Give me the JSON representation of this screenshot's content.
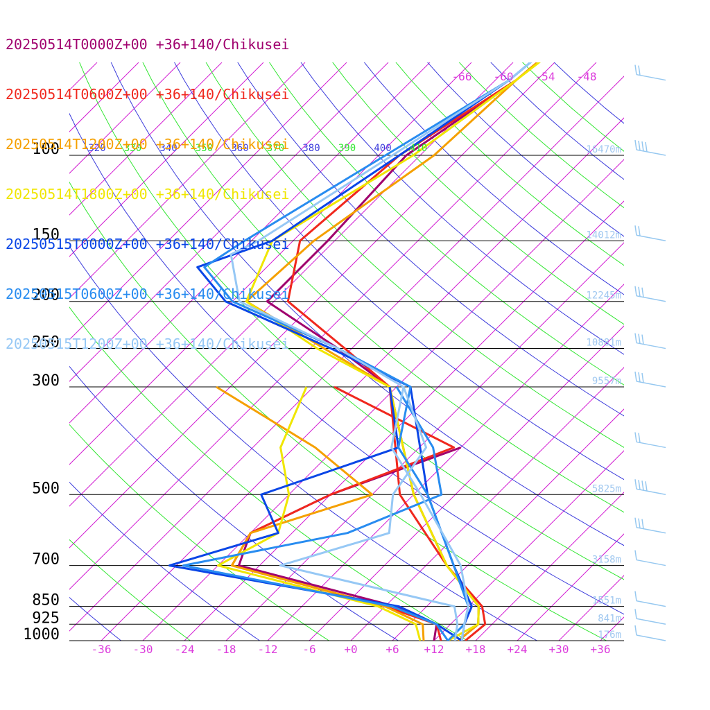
{
  "chart_data": {
    "type": "line",
    "title": "",
    "legend": {
      "placement": "top-left",
      "entries": [
        {
          "label": "20250514T0000Z+00 +36+140/Chikusei",
          "color": "#a0006e"
        },
        {
          "label": "20250514T0600Z+00 +36+140/Chikusei",
          "color": "#f0281e"
        },
        {
          "label": "20250514T1200Z+00 +36+140/Chikusei",
          "color": "#f5a000"
        },
        {
          "label": "20250514T1800Z+00 +36+140/Chikusei",
          "color": "#f0e600"
        },
        {
          "label": "20250515T0000Z+00 +36+140/Chikusei",
          "color": "#0a46e6"
        },
        {
          "label": "20250515T0600Z+00 +36+140/Chikusei",
          "color": "#288cf0"
        },
        {
          "label": "20250515T1200Z+00 +36+140/Chikusei",
          "color": "#96c8f5"
        }
      ]
    },
    "pressure_levels": [
      100,
      150,
      200,
      250,
      300,
      500,
      700,
      850,
      925,
      1000
    ],
    "pressure_labels": [
      "100",
      "150",
      "200",
      "250",
      "300",
      "500",
      "700",
      "850",
      "925",
      "1000"
    ],
    "heights": [
      {
        "p": 100,
        "label": "16470m"
      },
      {
        "p": 150,
        "label": "14012m"
      },
      {
        "p": 200,
        "label": "12245m"
      },
      {
        "p": 250,
        "label": "10881m"
      },
      {
        "p": 300,
        "label": "9557m"
      },
      {
        "p": 500,
        "label": "5825m"
      },
      {
        "p": 700,
        "label": "3158m"
      },
      {
        "p": 850,
        "label": "1551m"
      },
      {
        "p": 925,
        "label": "841m"
      },
      {
        "p": 1000,
        "label": "176m"
      }
    ],
    "x_ticks": [
      -36,
      -30,
      -24,
      -18,
      -12,
      -6,
      0,
      6,
      12,
      18,
      24,
      30,
      36
    ],
    "x_tick_labels": [
      "-36",
      "-30",
      "-24",
      "-18",
      "-12",
      "-6",
      "+0",
      "+6",
      "+12",
      "+18",
      "+24",
      "+30",
      "+36"
    ],
    "isotherm_labels_top": [
      "-66",
      "-60",
      "-54",
      "-48"
    ],
    "theta_labels": [
      "320",
      "330",
      "340",
      "350",
      "360",
      "370",
      "380",
      "390",
      "400",
      "410"
    ],
    "xlabel": "",
    "ylabel": "",
    "colors": {
      "isobar": "#000000",
      "isotherm": "#d21ed2",
      "dry_adiabat": "#3c3cdc",
      "moist_adiabat": "#32e632",
      "height_label": "#a0c8f0",
      "tick_label": "#dc3cdc",
      "wind_barb": "#96c8f0"
    },
    "series": [
      {
        "name": "20250514T0000Z+00 +36+140/Chikusei",
        "color": "#a0006e",
        "temperature": [
          [
            1000,
            15.5
          ],
          [
            925,
            16
          ],
          [
            850,
            13.5
          ],
          [
            700,
            3
          ],
          [
            500,
            -12
          ],
          [
            300,
            -31
          ],
          [
            250,
            -44
          ],
          [
            200,
            -61
          ],
          [
            150,
            -61
          ],
          [
            100,
            -62
          ],
          [
            70,
            -57
          ],
          [
            50,
            -55
          ]
        ],
        "dewpoint": [
          [
            1000,
            12
          ],
          [
            925,
            10
          ],
          [
            850,
            1.5
          ],
          [
            700,
            -27
          ],
          [
            600,
            -30
          ],
          [
            500,
            -24
          ],
          [
            400,
            -12
          ]
        ]
      },
      {
        "name": "20250514T0600Z+00 +36+140/Chikusei",
        "color": "#f0281e",
        "temperature": [
          [
            1000,
            16.5
          ],
          [
            925,
            17
          ],
          [
            850,
            14
          ],
          [
            700,
            3
          ],
          [
            500,
            -14
          ],
          [
            300,
            -31
          ],
          [
            250,
            -43
          ],
          [
            200,
            -58
          ],
          [
            150,
            -65
          ],
          [
            100,
            -63
          ],
          [
            70,
            -57
          ],
          [
            50,
            -55
          ]
        ],
        "dewpoint": [
          [
            1000,
            13
          ],
          [
            925,
            10
          ],
          [
            850,
            0
          ],
          [
            700,
            -28
          ],
          [
            600,
            -30
          ],
          [
            500,
            -24
          ],
          [
            400,
            -13
          ],
          [
            300,
            -39
          ]
        ]
      },
      {
        "name": "20250514T1200Z+00 +36+140/Chikusei",
        "color": "#f5a000",
        "temperature": [
          [
            1000,
            15.5
          ],
          [
            925,
            16
          ],
          [
            850,
            13.5
          ],
          [
            700,
            3
          ],
          [
            500,
            -12
          ],
          [
            300,
            -31
          ],
          [
            250,
            -46
          ],
          [
            200,
            -64
          ],
          [
            150,
            -63
          ],
          [
            100,
            -58
          ],
          [
            70,
            -57
          ],
          [
            50,
            -55
          ]
        ],
        "dewpoint": [
          [
            1000,
            10.5
          ],
          [
            925,
            8
          ],
          [
            850,
            0
          ],
          [
            700,
            -28
          ],
          [
            600,
            -30
          ],
          [
            500,
            -18
          ],
          [
            400,
            -33
          ],
          [
            300,
            -56
          ]
        ]
      },
      {
        "name": "20250514T1800Z+00 +36+140/Chikusei",
        "color": "#f0e600",
        "temperature": [
          [
            1000,
            14
          ],
          [
            925,
            16
          ],
          [
            850,
            13.5
          ],
          [
            700,
            3
          ],
          [
            500,
            -12
          ],
          [
            300,
            -31
          ],
          [
            250,
            -47
          ],
          [
            200,
            -64
          ],
          [
            150,
            -69
          ],
          [
            100,
            -61
          ],
          [
            70,
            -57
          ],
          [
            50,
            -54
          ]
        ],
        "dewpoint": [
          [
            1000,
            10
          ],
          [
            925,
            7
          ],
          [
            850,
            -1
          ],
          [
            700,
            -30
          ],
          [
            600,
            -26
          ],
          [
            500,
            -30
          ],
          [
            400,
            -38
          ],
          [
            300,
            -43
          ]
        ]
      },
      {
        "name": "20250515T0000Z+00 +36+140/Chikusei",
        "color": "#0a46e6",
        "temperature": [
          [
            1000,
            16
          ],
          [
            925,
            14
          ],
          [
            850,
            12.5
          ],
          [
            700,
            4
          ],
          [
            500,
            -10
          ],
          [
            300,
            -28
          ],
          [
            250,
            -45
          ],
          [
            200,
            -67
          ],
          [
            170,
            -76
          ],
          [
            150,
            -69
          ],
          [
            100,
            -63
          ],
          [
            70,
            -58
          ],
          [
            50,
            -56
          ]
        ],
        "dewpoint": [
          [
            1000,
            16
          ],
          [
            925,
            10
          ],
          [
            850,
            2
          ],
          [
            700,
            -37
          ],
          [
            600,
            -26
          ],
          [
            500,
            -34
          ],
          [
            400,
            -21
          ],
          [
            300,
            -31
          ]
        ]
      },
      {
        "name": "20250515T0600Z+00 +36+140/Chikusei",
        "color": "#288cf0",
        "temperature": [
          [
            1000,
            14
          ],
          [
            925,
            14
          ],
          [
            850,
            12
          ],
          [
            700,
            4
          ],
          [
            500,
            -10
          ],
          [
            400,
            -21
          ],
          [
            300,
            -28
          ],
          [
            250,
            -44
          ],
          [
            200,
            -66
          ],
          [
            170,
            -75
          ],
          [
            150,
            -73
          ],
          [
            100,
            -65
          ],
          [
            70,
            -58
          ],
          [
            50,
            -56
          ]
        ],
        "dewpoint": [
          [
            1000,
            14
          ],
          [
            925,
            10
          ],
          [
            850,
            1
          ],
          [
            700,
            -35
          ],
          [
            600,
            -16
          ],
          [
            500,
            -8
          ],
          [
            400,
            -16
          ],
          [
            300,
            -30
          ]
        ]
      },
      {
        "name": "20250515T1200Z+00 +36+140/Chikusei",
        "color": "#96c8f5",
        "temperature": [
          [
            1000,
            16
          ],
          [
            925,
            14
          ],
          [
            850,
            12
          ],
          [
            700,
            5
          ],
          [
            500,
            -11
          ],
          [
            400,
            -22
          ],
          [
            300,
            -29
          ],
          [
            250,
            -44
          ],
          [
            200,
            -65
          ],
          [
            160,
            -73
          ],
          [
            150,
            -71
          ],
          [
            100,
            -64
          ],
          [
            70,
            -58
          ],
          [
            50,
            -56
          ]
        ],
        "dewpoint": [
          [
            1000,
            15
          ],
          [
            925,
            13
          ],
          [
            850,
            10
          ],
          [
            700,
            -21
          ],
          [
            600,
            -10
          ],
          [
            500,
            -15
          ],
          [
            400,
            -17
          ],
          [
            300,
            -29
          ]
        ]
      }
    ],
    "wind_barbs": [
      {
        "p": 70,
        "speed_kt": 20
      },
      {
        "p": 100,
        "speed_kt": 40
      },
      {
        "p": 150,
        "speed_kt": 15
      },
      {
        "p": 200,
        "speed_kt": 30
      },
      {
        "p": 250,
        "speed_kt": 25
      },
      {
        "p": 300,
        "speed_kt": 25
      },
      {
        "p": 400,
        "speed_kt": 15
      },
      {
        "p": 500,
        "speed_kt": 35
      },
      {
        "p": 600,
        "speed_kt": 25
      },
      {
        "p": 700,
        "speed_kt": 10
      },
      {
        "p": 850,
        "speed_kt": 10
      },
      {
        "p": 925,
        "speed_kt": 5
      },
      {
        "p": 1000,
        "speed_kt": 5
      }
    ]
  }
}
